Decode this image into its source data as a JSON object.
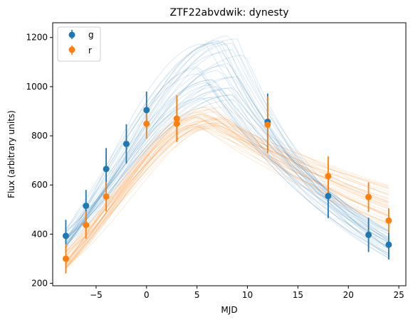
{
  "chart_data": {
    "type": "scatter",
    "title": "ZTF22abvdwik: dynesty",
    "xlabel": "MJD",
    "ylabel": "Flux (arbitrary units)",
    "xlim": [
      -9.3,
      25.7
    ],
    "ylim": [
      190,
      1260
    ],
    "xticks": [
      -5,
      0,
      5,
      10,
      15,
      20,
      25
    ],
    "xtick_labels": [
      "−5",
      "0",
      "5",
      "10",
      "15",
      "20",
      "25"
    ],
    "yticks": [
      200,
      400,
      600,
      800,
      1000,
      1200
    ],
    "ytick_labels": [
      "200",
      "400",
      "600",
      "800",
      "1000",
      "1200"
    ],
    "grid": false,
    "legend_position": "top-left",
    "series": [
      {
        "name": "g",
        "color": "#1f77b4",
        "x": [
          -8,
          -6,
          -4,
          -2,
          0,
          12,
          18,
          22,
          24
        ],
        "y": [
          393,
          515,
          665,
          767,
          905,
          857,
          555,
          397,
          357
        ],
        "yerr": [
          65,
          65,
          85,
          80,
          75,
          115,
          90,
          70,
          60
        ]
      },
      {
        "name": "r",
        "color": "#ff7f0e",
        "x": [
          -8,
          -6,
          -4,
          0,
          3,
          3,
          12,
          18,
          22,
          24
        ],
        "y": [
          300,
          437,
          553,
          849,
          849,
          870,
          845,
          636,
          551,
          455
        ],
        "yerr": [
          60,
          55,
          60,
          60,
          70,
          95,
          115,
          80,
          60,
          50
        ]
      }
    ],
    "model_curves": {
      "g": {
        "color": "#1f77b4",
        "count": 34,
        "peak_range": [
          930,
          1210
        ],
        "peak_x_range": [
          5,
          10
        ]
      },
      "r": {
        "color": "#ff7f0e",
        "count": 34,
        "peak_range": [
          830,
          920
        ],
        "peak_x_range": [
          5,
          8
        ]
      }
    }
  }
}
